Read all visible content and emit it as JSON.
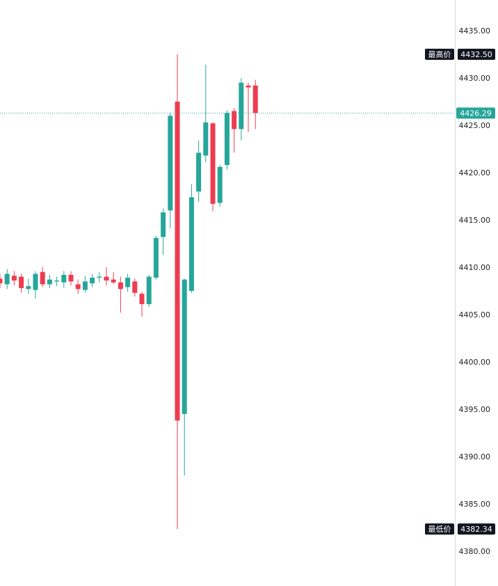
{
  "chart_data": {
    "type": "candlestick",
    "ylim": [
      4378,
      4437
    ],
    "yticks": [
      "4435.00",
      "4430.00",
      "4425.00",
      "4420.00",
      "4415.00",
      "4410.00",
      "4405.00",
      "4400.00",
      "4395.00",
      "4390.00",
      "4385.00",
      "4380.00"
    ],
    "colors": {
      "up": "#26a69a",
      "down": "#ef3b50"
    },
    "current_price": {
      "label": "4426.29",
      "value": 4426.29,
      "color": "#26a69a"
    },
    "high_marker": {
      "title": "最高价",
      "label": "4432.50",
      "value": 4432.5
    },
    "low_marker": {
      "title": "最低价",
      "label": "4382.34",
      "value": 4382.34
    },
    "candles": [
      {
        "o": 4408.8,
        "h": 4409.3,
        "l": 4407.8,
        "c": 4408.3
      },
      {
        "o": 4408.2,
        "h": 4409.8,
        "l": 4407.7,
        "c": 4409.3
      },
      {
        "o": 4409.1,
        "h": 4409.6,
        "l": 4408.1,
        "c": 4408.6
      },
      {
        "o": 4409.0,
        "h": 4409.3,
        "l": 4407.3,
        "c": 4407.8
      },
      {
        "o": 4407.7,
        "h": 4408.8,
        "l": 4407.2,
        "c": 4408.0
      },
      {
        "o": 4407.6,
        "h": 4409.6,
        "l": 4406.7,
        "c": 4409.3
      },
      {
        "o": 4409.5,
        "h": 4410.0,
        "l": 4407.9,
        "c": 4408.2
      },
      {
        "o": 4408.2,
        "h": 4409.2,
        "l": 4407.8,
        "c": 4408.7
      },
      {
        "o": 4408.5,
        "h": 4409.0,
        "l": 4408.0,
        "c": 4408.6
      },
      {
        "o": 4408.4,
        "h": 4409.6,
        "l": 4407.8,
        "c": 4409.2
      },
      {
        "o": 4409.2,
        "h": 4409.6,
        "l": 4408.1,
        "c": 4408.5
      },
      {
        "o": 4408.2,
        "h": 4408.7,
        "l": 4407.2,
        "c": 4407.7
      },
      {
        "o": 4407.6,
        "h": 4409.1,
        "l": 4407.3,
        "c": 4408.5
      },
      {
        "o": 4408.3,
        "h": 4409.3,
        "l": 4407.9,
        "c": 4408.9
      },
      {
        "o": 4408.9,
        "h": 4409.5,
        "l": 4408.4,
        "c": 4409.0
      },
      {
        "o": 4409.0,
        "h": 4410.0,
        "l": 4408.1,
        "c": 4408.6
      },
      {
        "o": 4408.7,
        "h": 4409.5,
        "l": 4408.2,
        "c": 4408.4
      },
      {
        "o": 4408.4,
        "h": 4409.0,
        "l": 4405.2,
        "c": 4407.7
      },
      {
        "o": 4407.9,
        "h": 4409.3,
        "l": 4407.4,
        "c": 4408.9
      },
      {
        "o": 4408.5,
        "h": 4408.8,
        "l": 4406.9,
        "c": 4407.3
      },
      {
        "o": 4407.2,
        "h": 4407.4,
        "l": 4404.8,
        "c": 4406.1
      },
      {
        "o": 4406.1,
        "h": 4409.2,
        "l": 4405.8,
        "c": 4409.0
      },
      {
        "o": 4408.9,
        "h": 4413.3,
        "l": 4408.7,
        "c": 4413.1
      },
      {
        "o": 4413.2,
        "h": 4416.2,
        "l": 4411.3,
        "c": 4415.8
      },
      {
        "o": 4416.0,
        "h": 4426.3,
        "l": 4414.1,
        "c": 4426.0
      },
      {
        "o": 4427.5,
        "h": 4432.5,
        "l": 4382.34,
        "c": 4393.8
      },
      {
        "o": 4394.5,
        "h": 4408.8,
        "l": 4388.0,
        "c": 4408.7
      },
      {
        "o": 4407.5,
        "h": 4418.8,
        "l": 4407.3,
        "c": 4417.4
      },
      {
        "o": 4418.0,
        "h": 4423.4,
        "l": 4416.9,
        "c": 4422.1
      },
      {
        "o": 4421.8,
        "h": 4431.4,
        "l": 4421.1,
        "c": 4425.3
      },
      {
        "o": 4425.2,
        "h": 4425.3,
        "l": 4415.9,
        "c": 4416.7
      },
      {
        "o": 4416.8,
        "h": 4420.8,
        "l": 4416.4,
        "c": 4420.6
      },
      {
        "o": 4420.8,
        "h": 4426.6,
        "l": 4420.3,
        "c": 4426.3
      },
      {
        "o": 4426.5,
        "h": 4426.8,
        "l": 4422.1,
        "c": 4424.6
      },
      {
        "o": 4424.6,
        "h": 4430.0,
        "l": 4423.4,
        "c": 4429.5
      },
      {
        "o": 4429.2,
        "h": 4429.5,
        "l": 4424.3,
        "c": 4429.0
      },
      {
        "o": 4429.2,
        "h": 4429.8,
        "l": 4424.6,
        "c": 4426.3
      }
    ]
  }
}
